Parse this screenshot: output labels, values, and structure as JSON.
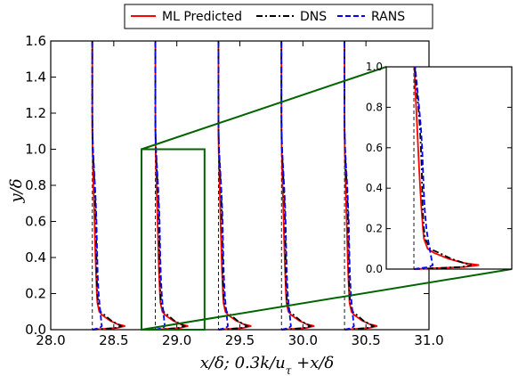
{
  "chart_data": {
    "type": "line",
    "xlabel": "x/δ;     0.3k/u_τ +x/δ",
    "ylabel": "y/δ",
    "xlim": [
      28.0,
      31.0
    ],
    "ylim": [
      0.0,
      1.6
    ],
    "xticks": [
      "28.0",
      "28.5",
      "29.0",
      "29.5",
      "30.0",
      "30.5",
      "31.0"
    ],
    "yticks": [
      "0.0",
      "0.2",
      "0.4",
      "0.6",
      "0.8",
      "1.0",
      "1.2",
      "1.4",
      "1.6"
    ],
    "grid": false,
    "legend": {
      "placement": "top-center",
      "entries": [
        "ML Predicted",
        "DNS",
        "RANS"
      ]
    },
    "colors": {
      "ML Predicted": "#ff0000",
      "DNS": "#000000",
      "RANS": "#0000ff",
      "zoom": "#006400"
    },
    "stations": [
      28.33,
      28.83,
      29.33,
      29.83,
      30.33
    ],
    "y": [
      0.0,
      0.01,
      0.02,
      0.03,
      0.05,
      0.08,
      0.1,
      0.15,
      0.2,
      0.3,
      0.4,
      0.5,
      0.6,
      0.7,
      0.8,
      0.9,
      1.0,
      1.1,
      1.2,
      1.6
    ],
    "series": [
      {
        "name": "ML Predicted",
        "offsets": [
          0.0,
          0.2,
          0.26,
          0.2,
          0.14,
          0.08,
          0.055,
          0.04,
          0.036,
          0.03,
          0.025,
          0.021,
          0.017,
          0.013,
          0.009,
          0.005,
          0.002,
          0.0,
          0.0,
          0.0
        ]
      },
      {
        "name": "DNS",
        "offsets": [
          0.0,
          0.19,
          0.23,
          0.2,
          0.15,
          0.1,
          0.065,
          0.045,
          0.04,
          0.035,
          0.033,
          0.031,
          0.028,
          0.024,
          0.018,
          0.01,
          0.004,
          0.001,
          0.0,
          0.0
        ]
      },
      {
        "name": "RANS",
        "offsets": [
          0.0,
          0.06,
          0.075,
          0.073,
          0.07,
          0.066,
          0.063,
          0.056,
          0.05,
          0.043,
          0.039,
          0.036,
          0.033,
          0.028,
          0.021,
          0.013,
          0.005,
          0.001,
          0.0,
          0.0
        ]
      }
    ],
    "zoom": {
      "region_x": [
        28.72,
        29.22
      ],
      "region_y": [
        0.0,
        1.0
      ],
      "inset_ylim": [
        0.0,
        1.0
      ],
      "inset_yticks": [
        "0.0",
        "0.2",
        "0.4",
        "0.6",
        "0.8",
        "1.0"
      ]
    }
  }
}
